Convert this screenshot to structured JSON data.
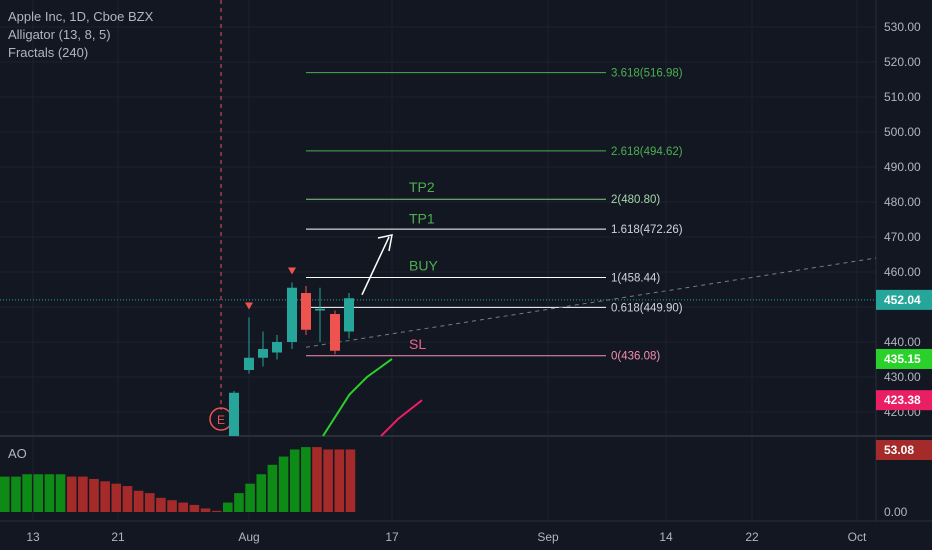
{
  "legend": {
    "symbol": "Apple Inc, 1D, Cboe BZX",
    "alligator": "Alligator (13, 8, 5)",
    "fractals": "Fractals (240)"
  },
  "ao_label": "AO",
  "earnings_marker": "E",
  "colors": {
    "background": "#131722",
    "grid": "#1e222d",
    "up": "#26a69a",
    "down": "#ef5350",
    "fib": "#ffffff",
    "fib_ext": "#4caf50",
    "sl_line": "#f48fb1",
    "annotation_green": "#4caf50",
    "annotation_red": "#f06292",
    "alligator_lips": "#2bd12b",
    "alligator_teeth": "#e91e63",
    "ao_up": "#0e8a16",
    "ao_down": "#a52a2a"
  },
  "chart_data": [
    {
      "type": "candlestick",
      "y_axis": {
        "ticks": [
          "530.00",
          "520.00",
          "510.00",
          "500.00",
          "490.00",
          "480.00",
          "470.00",
          "460.00",
          "440.00",
          "430.00",
          "420.00"
        ],
        "range": [
          412,
          534
        ]
      },
      "x_axis": {
        "ticks": [
          "13",
          "21",
          "Aug",
          "17",
          "Sep",
          "14",
          "22",
          "Oct"
        ]
      },
      "candles": [
        {
          "o": 412,
          "h": 426,
          "l": 412,
          "c": 425.5
        },
        {
          "o": 432,
          "h": 447,
          "l": 431,
          "c": 435.5
        },
        {
          "o": 435.5,
          "h": 443,
          "l": 433,
          "c": 438
        },
        {
          "o": 437,
          "h": 442,
          "l": 435,
          "c": 440
        },
        {
          "o": 440,
          "h": 457,
          "l": 438,
          "c": 455.5
        },
        {
          "o": 454,
          "h": 456,
          "l": 442,
          "c": 443.5
        },
        {
          "o": 449,
          "h": 455.5,
          "l": 440,
          "c": 449.5
        },
        {
          "o": 448,
          "h": 449,
          "l": 436.5,
          "c": 437.5
        },
        {
          "o": 443,
          "h": 454,
          "l": 441,
          "c": 452.5
        }
      ],
      "fib_levels": [
        {
          "label": "3.618(516.98)",
          "value": 516.98
        },
        {
          "label": "2.618(494.62)",
          "value": 494.62
        },
        {
          "label": "2(480.80)",
          "value": 480.8
        },
        {
          "label": "1.618(472.26)",
          "value": 472.26
        },
        {
          "label": "1(458.44)",
          "value": 458.44
        },
        {
          "label": "0.618(449.90)",
          "value": 449.9
        },
        {
          "label": "0(436.08)",
          "value": 436.08
        }
      ],
      "annotations": [
        "TP2",
        "TP1",
        "BUY",
        "SL"
      ],
      "price_labels": [
        {
          "label": "452.04",
          "value": 452.04,
          "color": "#26a69a"
        },
        {
          "label": "435.15",
          "value": 435.15,
          "color": "#2bd12b"
        },
        {
          "label": "423.38",
          "value": 423.38,
          "color": "#e91e63"
        }
      ],
      "alligator_lips": [
        [
          425,
          8.5
        ],
        [
          430,
          11
        ],
        [
          435,
          14
        ]
      ],
      "alligator_teeth": [
        [
          412,
          11.5
        ],
        [
          418,
          13.5
        ],
        [
          423.4,
          15
        ]
      ],
      "fractals_down_at": [
        1,
        4
      ]
    },
    {
      "type": "bar",
      "title": "AO",
      "y_axis": {
        "ticks": [
          "0.00"
        ],
        "range": [
          -4,
          58
        ]
      },
      "current_label": "53.08",
      "values": [
        30,
        30,
        32,
        32,
        32,
        32,
        30,
        30,
        28,
        26,
        24,
        22,
        18,
        16,
        12,
        10,
        8,
        6,
        3,
        1,
        8,
        16,
        24,
        32,
        40,
        47,
        53,
        55,
        55,
        53,
        53,
        53
      ],
      "colors": [
        "up",
        "up",
        "up",
        "up",
        "up",
        "up",
        "down",
        "down",
        "down",
        "down",
        "down",
        "down",
        "down",
        "down",
        "down",
        "down",
        "down",
        "down",
        "down",
        "down",
        "up",
        "up",
        "up",
        "up",
        "up",
        "up",
        "up",
        "up",
        "down",
        "down",
        "down",
        "down"
      ]
    }
  ]
}
